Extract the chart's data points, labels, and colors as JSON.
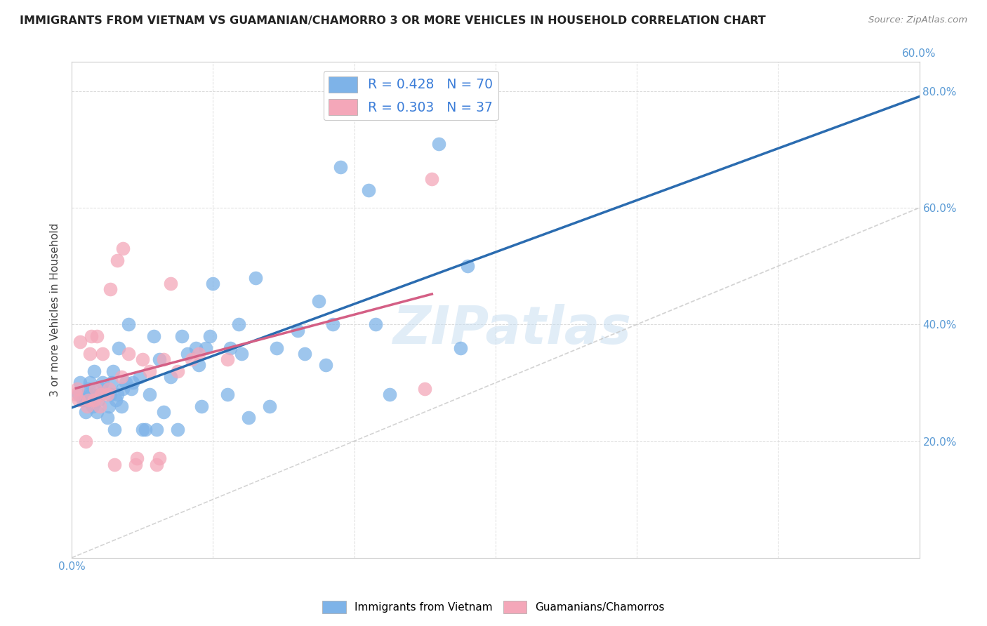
{
  "title": "IMMIGRANTS FROM VIETNAM VS GUAMANIAN/CHAMORRO 3 OR MORE VEHICLES IN HOUSEHOLD CORRELATION CHART",
  "source": "Source: ZipAtlas.com",
  "ylabel": "3 or more Vehicles in Household",
  "xlabel": "",
  "xlim": [
    0.0,
    0.6
  ],
  "ylim": [
    0.0,
    0.85
  ],
  "x_ticks": [
    0.0,
    0.1,
    0.2,
    0.3,
    0.4,
    0.5,
    0.6
  ],
  "x_tick_labels_left": [
    "0.0%",
    "",
    "",
    "",
    "",
    "",
    ""
  ],
  "x_tick_labels_right_val": "60.0%",
  "y_ticks": [
    0.0,
    0.2,
    0.4,
    0.6,
    0.8
  ],
  "y_tick_labels_left": [
    "",
    "",
    "",
    "",
    ""
  ],
  "y_tick_labels_right": [
    "",
    "20.0%",
    "40.0%",
    "60.0%",
    "80.0%"
  ],
  "R_vietnam": 0.428,
  "N_vietnam": 70,
  "R_guam": 0.303,
  "N_guam": 37,
  "color_vietnam": "#7EB3E8",
  "color_guam": "#F4A7B9",
  "color_vietnam_line": "#2B6CB0",
  "color_guam_line": "#D45F85",
  "color_diagonal": "#C8C8C8",
  "legend_label_vietnam": "Immigrants from Vietnam",
  "legend_label_guam": "Guamanians/Chamorros",
  "watermark": "ZIPatlas",
  "vietnam_x": [
    0.005,
    0.006,
    0.008,
    0.01,
    0.01,
    0.011,
    0.012,
    0.013,
    0.013,
    0.014,
    0.015,
    0.016,
    0.018,
    0.019,
    0.02,
    0.021,
    0.022,
    0.025,
    0.026,
    0.027,
    0.028,
    0.029,
    0.03,
    0.031,
    0.032,
    0.033,
    0.035,
    0.036,
    0.038,
    0.04,
    0.042,
    0.043,
    0.048,
    0.05,
    0.052,
    0.055,
    0.058,
    0.06,
    0.062,
    0.065,
    0.07,
    0.075,
    0.078,
    0.082,
    0.088,
    0.09,
    0.092,
    0.095,
    0.098,
    0.1,
    0.11,
    0.112,
    0.118,
    0.12,
    0.125,
    0.13,
    0.14,
    0.145,
    0.16,
    0.165,
    0.175,
    0.18,
    0.185,
    0.19,
    0.21,
    0.215,
    0.225,
    0.26,
    0.275,
    0.28
  ],
  "vietnam_y": [
    0.28,
    0.3,
    0.27,
    0.25,
    0.27,
    0.28,
    0.29,
    0.27,
    0.3,
    0.28,
    0.26,
    0.32,
    0.25,
    0.27,
    0.28,
    0.29,
    0.3,
    0.24,
    0.26,
    0.28,
    0.3,
    0.32,
    0.22,
    0.27,
    0.28,
    0.36,
    0.26,
    0.29,
    0.3,
    0.4,
    0.29,
    0.3,
    0.31,
    0.22,
    0.22,
    0.28,
    0.38,
    0.22,
    0.34,
    0.25,
    0.31,
    0.22,
    0.38,
    0.35,
    0.36,
    0.33,
    0.26,
    0.36,
    0.38,
    0.47,
    0.28,
    0.36,
    0.4,
    0.35,
    0.24,
    0.48,
    0.26,
    0.36,
    0.39,
    0.35,
    0.44,
    0.33,
    0.4,
    0.67,
    0.63,
    0.4,
    0.28,
    0.71,
    0.36,
    0.5
  ],
  "guam_x": [
    0.003,
    0.004,
    0.005,
    0.006,
    0.01,
    0.011,
    0.012,
    0.013,
    0.014,
    0.016,
    0.017,
    0.018,
    0.02,
    0.021,
    0.022,
    0.025,
    0.026,
    0.027,
    0.03,
    0.032,
    0.035,
    0.036,
    0.04,
    0.045,
    0.046,
    0.05,
    0.055,
    0.06,
    0.062,
    0.065,
    0.07,
    0.075,
    0.085,
    0.09,
    0.11,
    0.25,
    0.255
  ],
  "guam_y": [
    0.28,
    0.29,
    0.27,
    0.37,
    0.2,
    0.26,
    0.27,
    0.35,
    0.38,
    0.27,
    0.29,
    0.38,
    0.26,
    0.28,
    0.35,
    0.28,
    0.29,
    0.46,
    0.16,
    0.51,
    0.31,
    0.53,
    0.35,
    0.16,
    0.17,
    0.34,
    0.32,
    0.16,
    0.17,
    0.34,
    0.47,
    0.32,
    0.34,
    0.35,
    0.34,
    0.29,
    0.65
  ]
}
